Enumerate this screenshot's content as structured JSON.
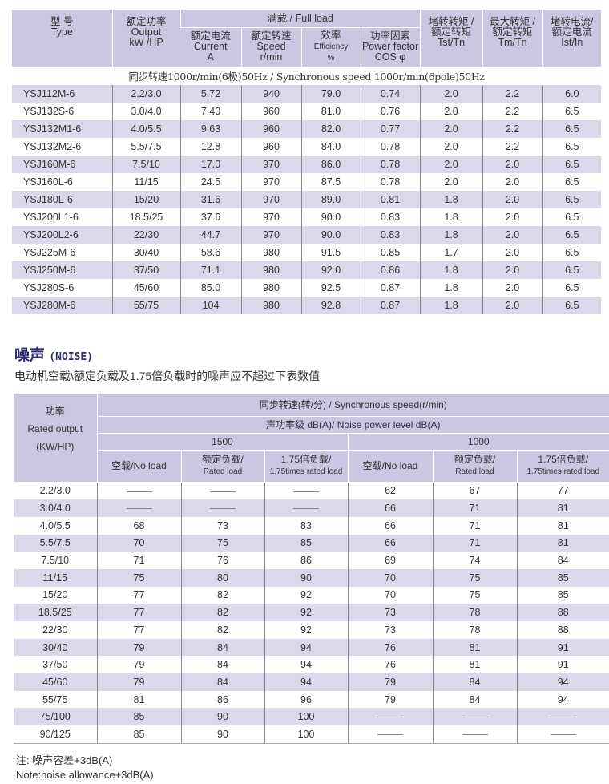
{
  "table1": {
    "headers": {
      "type_cn": "型 号",
      "type_en": "Type",
      "output_cn": "额定功率",
      "output_en1": "Output",
      "output_en2": "kW /HP",
      "full_load": "满载 / Full load",
      "current_cn": "额定电流",
      "current_en": "Current",
      "current_unit": "A",
      "speed_cn": "额定转速",
      "speed_en": "Speed",
      "speed_unit": "r/min",
      "eff_cn": "效率",
      "eff_en": "Efficiency",
      "eff_unit": "%",
      "pf_cn": "功率因素",
      "pf_en": "Power factor",
      "pf_unit": "COS φ",
      "tst_cn1": "堵转转矩 /",
      "tst_cn2": "额定转矩",
      "tst_en": "Tst/Tn",
      "tm_cn1": "最大转矩 /",
      "tm_cn2": "额定转矩",
      "tm_en": "Tm/Tn",
      "ist_cn1": "堵转电流/",
      "ist_cn2": "额定电流",
      "ist_en": "Ist/In"
    },
    "sync_note": "同步转速1000r/min(6极)50Hz / Synchronous speed 1000r/min(6pole)50Hz",
    "rows": [
      [
        "YSJ112M-6",
        "2.2/3.0",
        "5.72",
        "940",
        "79.0",
        "0.74",
        "2.0",
        "2.2",
        "6.0"
      ],
      [
        "YSJ132S-6",
        "3.0/4.0",
        "7.40",
        "960",
        "81.0",
        "0.76",
        "2.0",
        "2.2",
        "6.5"
      ],
      [
        "YSJ132M1-6",
        "4.0/5.5",
        "9.63",
        "960",
        "82.0",
        "0.77",
        "2.0",
        "2.2",
        "6.5"
      ],
      [
        "YSJ132M2-6",
        "5.5/7.5",
        "12.8",
        "960",
        "84.0",
        "0.78",
        "2.0",
        "2.2",
        "6.5"
      ],
      [
        "YSJ160M-6",
        "7.5/10",
        "17.0",
        "970",
        "86.0",
        "0.78",
        "2.0",
        "2.0",
        "6.5"
      ],
      [
        "YSJ160L-6",
        "11/15",
        "24.5",
        "970",
        "87.5",
        "0.78",
        "2.0",
        "2.0",
        "6.5"
      ],
      [
        "YSJ180L-6",
        "15/20",
        "31.6",
        "970",
        "89.0",
        "0.81",
        "1.8",
        "2.0",
        "6.5"
      ],
      [
        "YSJ200L1-6",
        "18.5/25",
        "37.6",
        "970",
        "90.0",
        "0.83",
        "1.8",
        "2.0",
        "6.5"
      ],
      [
        "YSJ200L2-6",
        "22/30",
        "44.7",
        "970",
        "90.0",
        "0.83",
        "1.8",
        "2.0",
        "6.5"
      ],
      [
        "YSJ225M-6",
        "30/40",
        "58.6",
        "980",
        "91.5",
        "0.85",
        "1.7",
        "2.0",
        "6.5"
      ],
      [
        "YSJ250M-6",
        "37/50",
        "71.1",
        "980",
        "92.0",
        "0.86",
        "1.8",
        "2.0",
        "6.5"
      ],
      [
        "YSJ280S-6",
        "45/60",
        "85.0",
        "980",
        "92.5",
        "0.87",
        "1.8",
        "2.0",
        "6.5"
      ],
      [
        "YSJ280M-6",
        "55/75",
        "104",
        "980",
        "92.8",
        "0.87",
        "1.8",
        "2.0",
        "6.5"
      ]
    ]
  },
  "noise": {
    "title": "噪声",
    "title_en": "(NOISE)",
    "subtitle": "电动机空载\\额定负载及1.75倍负载时的噪声应不超过下表数值",
    "headers": {
      "output_cn": "功率",
      "output_en": "Rated output",
      "output_unit": "(KW/HP)",
      "sync": "同步转速(转/分) /  Synchronous speed(r/min)",
      "level": "声功率级 dB(A)/  Noise power level dB(A)",
      "speed_1500": "1500",
      "speed_1000": "1000",
      "noload": "空载/No load",
      "rated_cn": "额定负载/",
      "rated_en": "Rated load",
      "x175_cn": "1.75倍负载/",
      "x175_en": "1.75times rated load"
    },
    "rows": [
      [
        "2.2/3.0",
        "—",
        "—",
        "—",
        "62",
        "67",
        "77"
      ],
      [
        "3.0/4.0",
        "—",
        "—",
        "—",
        "66",
        "71",
        "81"
      ],
      [
        "4.0/5.5",
        "68",
        "73",
        "83",
        "66",
        "71",
        "81"
      ],
      [
        "5.5/7.5",
        "70",
        "75",
        "85",
        "66",
        "71",
        "81"
      ],
      [
        "7.5/10",
        "71",
        "76",
        "86",
        "69",
        "74",
        "84"
      ],
      [
        "11/15",
        "75",
        "80",
        "90",
        "70",
        "75",
        "85"
      ],
      [
        "15/20",
        "77",
        "82",
        "92",
        "70",
        "75",
        "85"
      ],
      [
        "18.5/25",
        "77",
        "82",
        "92",
        "73",
        "78",
        "88"
      ],
      [
        "22/30",
        "77",
        "82",
        "92",
        "73",
        "78",
        "88"
      ],
      [
        "30/40",
        "79",
        "84",
        "94",
        "76",
        "81",
        "91"
      ],
      [
        "37/50",
        "79",
        "84",
        "94",
        "76",
        "81",
        "91"
      ],
      [
        "45/60",
        "79",
        "84",
        "94",
        "79",
        "84",
        "94"
      ],
      [
        "55/75",
        "81",
        "86",
        "96",
        "79",
        "84",
        "94"
      ],
      [
        "75/100",
        "85",
        "90",
        "100",
        "—",
        "—",
        "—"
      ],
      [
        "90/125",
        "85",
        "90",
        "100",
        "—",
        "—",
        "—"
      ]
    ],
    "note_cn": "注:  噪声容差+3dB(A)",
    "note_en": "Note:noise allowance+3dB(A)"
  }
}
